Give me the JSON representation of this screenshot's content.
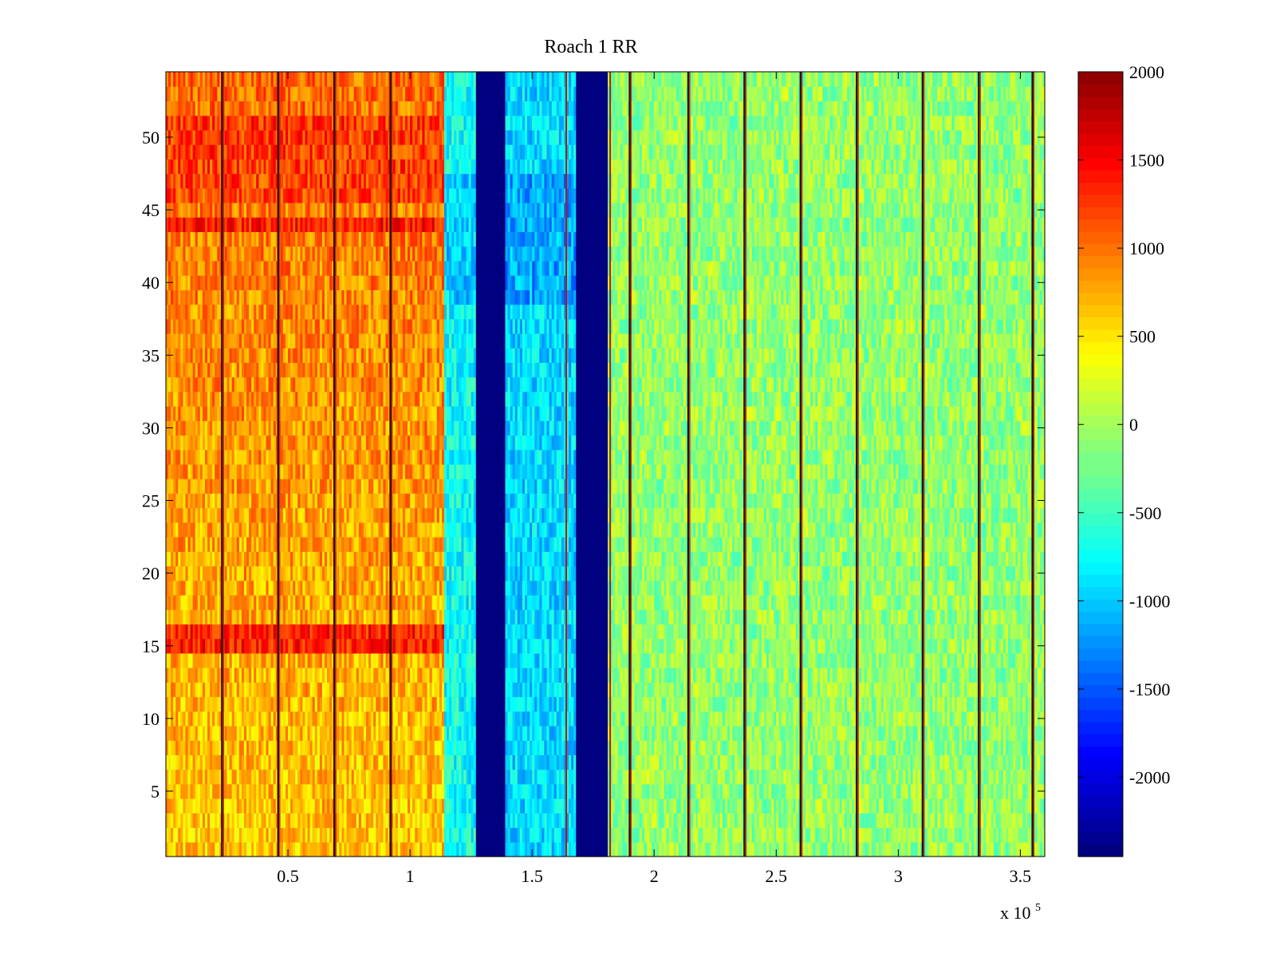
{
  "chart_data": {
    "type": "heatmap",
    "title": "Roach 1 RR",
    "xlabel": "",
    "ylabel": "",
    "x_multiplier_label": "x 10",
    "x_multiplier_exponent": "5",
    "xlim": [
      0,
      3.6
    ],
    "ylim": [
      0.5,
      54.5
    ],
    "x_ticks": [
      0.5,
      1,
      1.5,
      2,
      2.5,
      3,
      3.5
    ],
    "x_tick_labels": [
      "0.5",
      "1",
      "1.5",
      "2",
      "2.5",
      "3",
      "3.5"
    ],
    "y_ticks": [
      5,
      10,
      15,
      20,
      25,
      30,
      35,
      40,
      45,
      50
    ],
    "y_tick_labels": [
      "5",
      "10",
      "15",
      "20",
      "25",
      "30",
      "35",
      "40",
      "45",
      "50"
    ],
    "colorbar": {
      "colormap": "jet",
      "clim": [
        -2450,
        2000
      ],
      "ticks": [
        2000,
        1500,
        1000,
        500,
        0,
        -500,
        -1000,
        -1500,
        -2000
      ],
      "tick_labels": [
        "2000",
        "1500",
        "1000",
        "500",
        "0",
        "-500",
        "-1000",
        "-1500",
        "-2000"
      ]
    },
    "regions": [
      {
        "x_start": 0.0,
        "x_end": 1.14,
        "mean_value": 800,
        "description": "high"
      },
      {
        "x_start": 1.14,
        "x_end": 1.27,
        "mean_value": -700
      },
      {
        "x_start": 1.27,
        "x_end": 1.39,
        "mean_value": -2450
      },
      {
        "x_start": 1.39,
        "x_end": 1.68,
        "mean_value": -900
      },
      {
        "x_start": 1.68,
        "x_end": 1.81,
        "mean_value": -2450
      },
      {
        "x_start": 1.81,
        "x_end": 3.6,
        "mean_value": -100
      }
    ],
    "high_rows": [
      {
        "y_start": 43.5,
        "y_end": 44.5,
        "value": 1400
      },
      {
        "y_start": 14.5,
        "y_end": 16.5,
        "value": 1350
      }
    ],
    "dark_vertical_lines_x": [
      0.23,
      0.46,
      0.69,
      0.92,
      1.9,
      2.14,
      2.37,
      2.6,
      2.83,
      3.1,
      3.33,
      3.55
    ],
    "red_vertical_lines_x": [
      1.64,
      1.82
    ]
  }
}
